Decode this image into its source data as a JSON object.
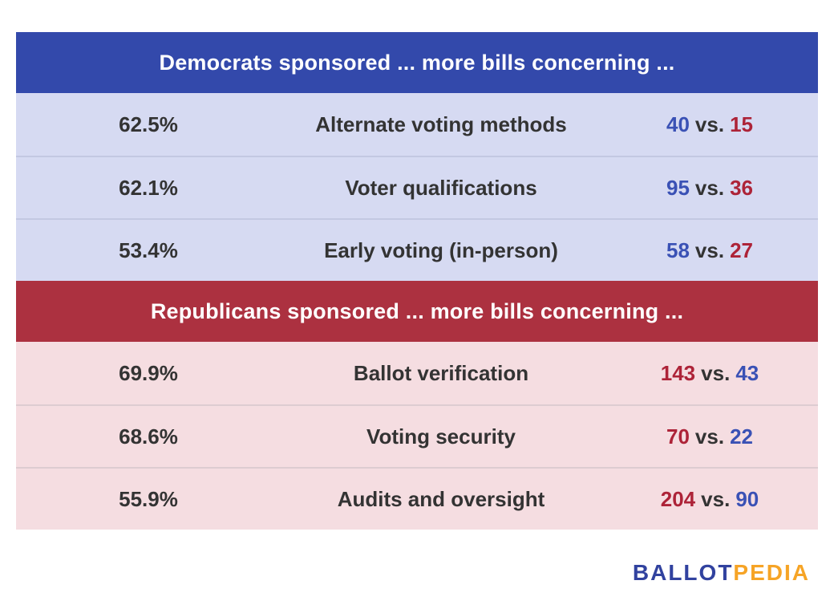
{
  "chart_data": {
    "type": "table",
    "title": "",
    "sections": [
      {
        "header": "Democrats sponsored ... more bills concerning ...",
        "majority_party": "Democrats",
        "rows": [
          {
            "percent": 62.5,
            "topic": "Alternate voting methods",
            "democrat_bills": 40,
            "republican_bills": 15
          },
          {
            "percent": 62.1,
            "topic": "Voter qualifications",
            "democrat_bills": 95,
            "republican_bills": 36
          },
          {
            "percent": 53.4,
            "topic": "Early voting (in-person)",
            "democrat_bills": 58,
            "republican_bills": 27
          }
        ]
      },
      {
        "header": "Republicans sponsored ... more bills concerning ...",
        "majority_party": "Republicans",
        "rows": [
          {
            "percent": 69.9,
            "topic": "Ballot verification",
            "republican_bills": 143,
            "democrat_bills": 43
          },
          {
            "percent": 68.6,
            "topic": "Voting security",
            "republican_bills": 70,
            "democrat_bills": 22
          },
          {
            "percent": 55.9,
            "topic": "Audits and oversight",
            "republican_bills": 204,
            "democrat_bills": 90
          }
        ]
      }
    ]
  },
  "colors": {
    "democrat_header_bg": "#3349ab",
    "democrat_row_bg": "#d6daf2",
    "republican_header_bg": "#ac3140",
    "republican_row_bg": "#f5dde1",
    "democrat_count": "#3a51b5",
    "republican_count": "#ad2338",
    "body_text": "#333333",
    "logo_blue": "#31429f",
    "logo_orange": "#f6a426"
  },
  "labels": {
    "vs": "vs."
  },
  "table": {
    "sections": [
      {
        "header": "Democrats sponsored ... more bills concerning ...",
        "rows": [
          {
            "percent": "62.5%",
            "topic": "Alternate voting methods",
            "majority_count": "40",
            "minority_count": "15"
          },
          {
            "percent": "62.1%",
            "topic": "Voter qualifications",
            "majority_count": "95",
            "minority_count": "36"
          },
          {
            "percent": "53.4%",
            "topic": "Early voting (in-person)",
            "majority_count": "58",
            "minority_count": "27"
          }
        ]
      },
      {
        "header": "Republicans sponsored ... more bills concerning ...",
        "rows": [
          {
            "percent": "69.9%",
            "topic": "Ballot verification",
            "majority_count": "143",
            "minority_count": "43"
          },
          {
            "percent": "68.6%",
            "topic": "Voting security",
            "majority_count": "70",
            "minority_count": "22"
          },
          {
            "percent": "55.9%",
            "topic": "Audits and oversight",
            "majority_count": "204",
            "minority_count": "90"
          }
        ]
      }
    ]
  },
  "footer": {
    "logo_part1": "BALLOT",
    "logo_part2": "PEDIA"
  }
}
